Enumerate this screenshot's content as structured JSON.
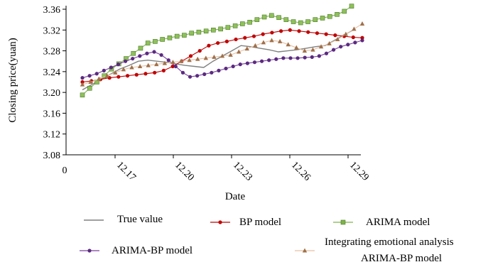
{
  "chart_data": {
    "type": "line",
    "xlabel": "Date",
    "ylabel": "Closing price(yuan)",
    "ylim": [
      3.08,
      3.36
    ],
    "y_ticks": [
      "3.08",
      "3.12",
      "3.16",
      "3.20",
      "3.24",
      "3.28",
      "3.32",
      "3.36"
    ],
    "x_origin_label": "0",
    "x_tick_labels": [
      "12.17",
      "12.20",
      "12.23",
      "12.26",
      "12.29"
    ],
    "grid": false,
    "legend_position": "bottom",
    "series": [
      {
        "name": "True value",
        "color": "#808080",
        "marker": "none",
        "values": [
          3.205,
          3.215,
          3.225,
          3.235,
          3.245,
          3.252,
          3.26,
          3.262,
          3.26,
          3.258,
          3.255,
          3.252,
          3.25,
          3.248,
          3.26,
          3.27,
          3.28,
          3.29,
          3.288,
          3.285,
          3.282,
          3.278,
          3.28,
          3.282,
          3.285,
          3.288,
          3.29,
          3.3,
          3.31,
          3.32
        ]
      },
      {
        "name": "BP model",
        "color": "#c00000",
        "marker": "circle",
        "values": [
          3.22,
          3.222,
          3.225,
          3.228,
          3.23,
          3.232,
          3.234,
          3.236,
          3.238,
          3.242,
          3.25,
          3.26,
          3.27,
          3.28,
          3.29,
          3.295,
          3.298,
          3.302,
          3.305,
          3.308,
          3.312,
          3.315,
          3.318,
          3.32,
          3.318,
          3.316,
          3.314,
          3.312,
          3.31,
          3.308,
          3.306,
          3.305
        ]
      },
      {
        "name": "ARIMA model",
        "color": "#7fb34a",
        "marker": "square",
        "values": [
          3.195,
          3.208,
          3.22,
          3.232,
          3.245,
          3.255,
          3.265,
          3.275,
          3.285,
          3.295,
          3.298,
          3.302,
          3.305,
          3.308,
          3.31,
          3.314,
          3.316,
          3.318,
          3.32,
          3.322,
          3.325,
          3.328,
          3.332,
          3.335,
          3.34,
          3.345,
          3.348,
          3.344,
          3.34,
          3.336,
          3.334,
          3.336,
          3.34,
          3.343,
          3.346,
          3.35,
          3.356,
          3.366
        ]
      },
      {
        "name": "ARIMA-BP model",
        "color": "#7b3fa0",
        "marker": "circle",
        "values": [
          3.228,
          3.232,
          3.236,
          3.242,
          3.248,
          3.254,
          3.26,
          3.265,
          3.27,
          3.275,
          3.278,
          3.272,
          3.262,
          3.25,
          3.238,
          3.23,
          3.232,
          3.235,
          3.238,
          3.242,
          3.246,
          3.25,
          3.254,
          3.256,
          3.258,
          3.26,
          3.262,
          3.264,
          3.266,
          3.266,
          3.266,
          3.267,
          3.268,
          3.27,
          3.275,
          3.282,
          3.288,
          3.292,
          3.296,
          3.3
        ]
      },
      {
        "name": "Integrating emotional analysis ARIMA-BP model",
        "color": "#c8946c",
        "marker": "triangle",
        "values": [
          3.215,
          3.22,
          3.226,
          3.232,
          3.238,
          3.244,
          3.248,
          3.25,
          3.252,
          3.254,
          3.256,
          3.258,
          3.26,
          3.262,
          3.264,
          3.266,
          3.268,
          3.27,
          3.272,
          3.278,
          3.284,
          3.29,
          3.296,
          3.3,
          3.298,
          3.292,
          3.286,
          3.28,
          3.282,
          3.288,
          3.294,
          3.302,
          3.312,
          3.322,
          3.332
        ]
      }
    ]
  },
  "legend": {
    "true_value": "True value",
    "bp_model": "BP model",
    "arima_model": "ARIMA model",
    "arima_bp_model": "ARIMA-BP model",
    "integrating_line1": "Integrating emotional analysis",
    "integrating_line2": "ARIMA-BP model"
  }
}
